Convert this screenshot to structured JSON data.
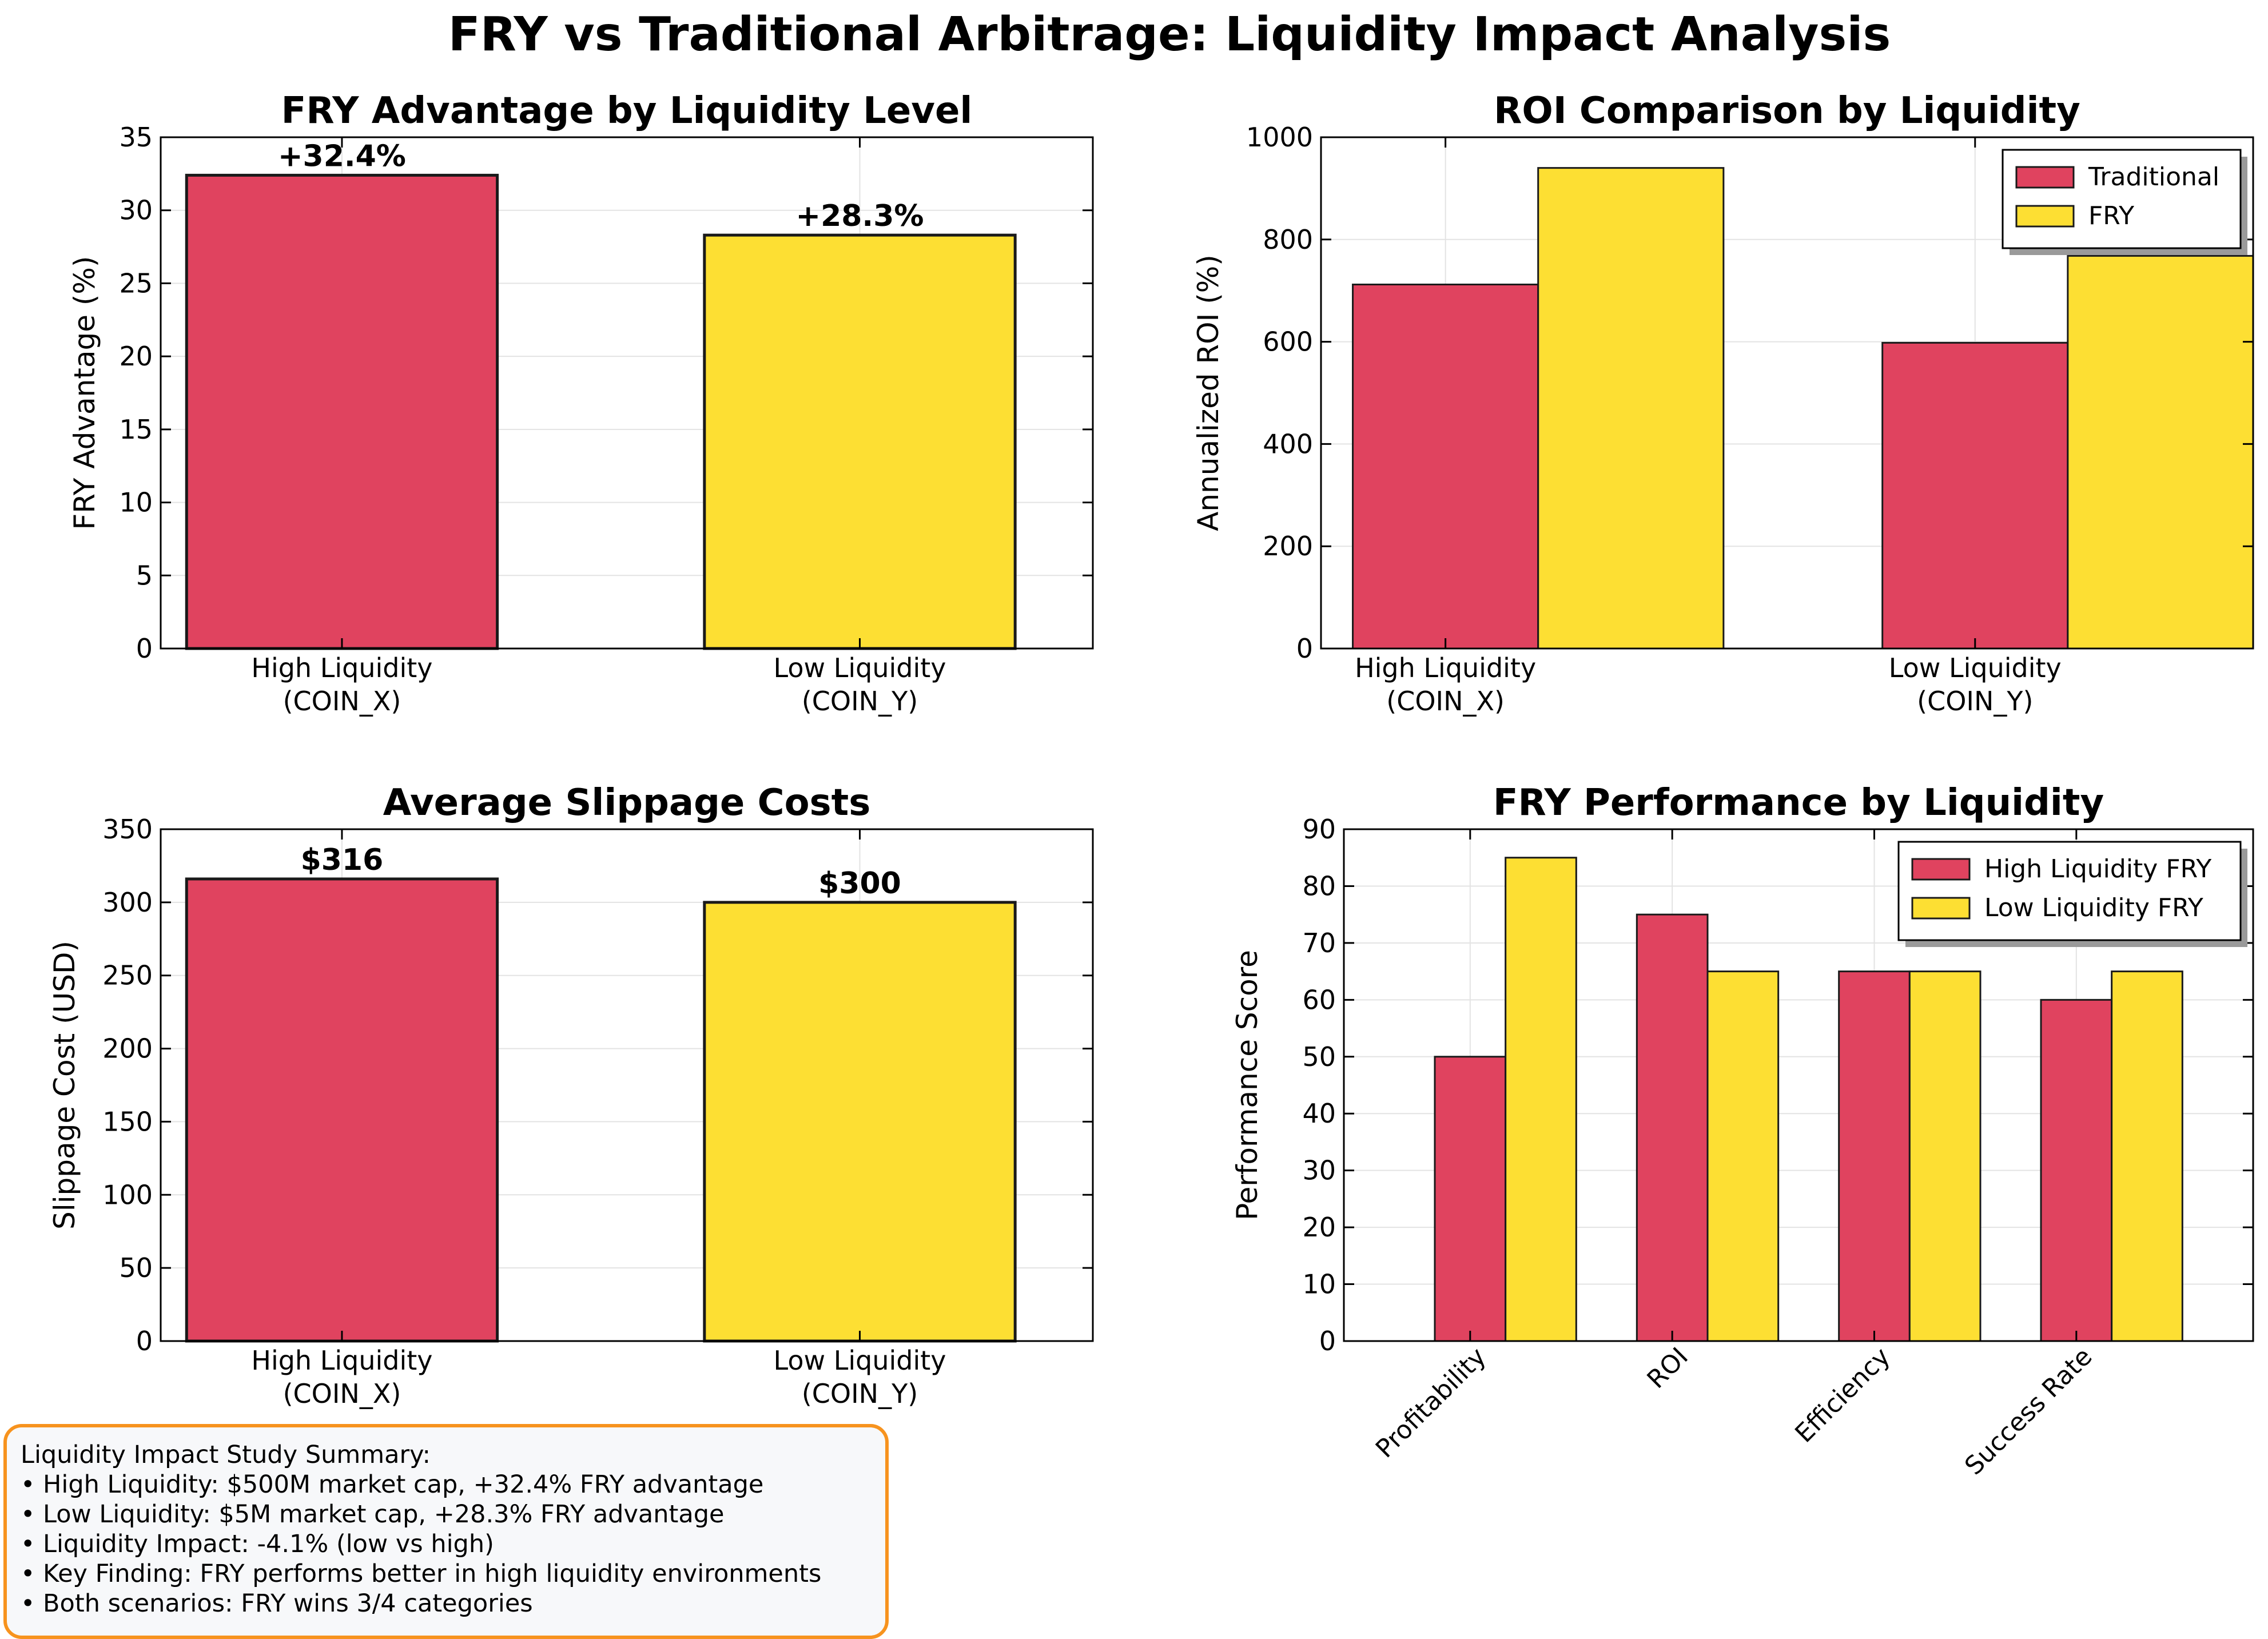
{
  "figure": {
    "title": "FRY vs Traditional Arbitrage: Liquidity Impact Analysis"
  },
  "colors": {
    "red": "#e0435f",
    "yellow": "#fddf33",
    "summary_border": "#f7931e",
    "summary_bg": "#f7f8fa"
  },
  "summary": {
    "lines": [
      "Liquidity Impact Study Summary:",
      "• High Liquidity: $500M market cap, +32.4% FRY advantage",
      "• Low Liquidity: $5M market cap, +28.3% FRY advantage",
      "• Liquidity Impact: -4.1% (low vs high)",
      "• Key Finding: FRY performs better in high liquidity environments",
      "• Both scenarios: FRY wins 3/4 categories"
    ]
  },
  "chart_data": [
    {
      "type": "bar",
      "title": "FRY Advantage by Liquidity Level",
      "xlabel": "",
      "ylabel": "FRY Advantage (%)",
      "categories": [
        "High Liquidity\n(COIN_X)",
        "Low Liquidity\n(COIN_Y)"
      ],
      "values": [
        32.4,
        28.3
      ],
      "bar_colors": [
        "red",
        "yellow"
      ],
      "data_labels": [
        "+32.4%",
        "+28.3%"
      ],
      "ylim": [
        0,
        35
      ],
      "yticks": [
        0,
        5,
        10,
        15,
        20,
        25,
        30,
        35
      ],
      "grid": true
    },
    {
      "type": "bar",
      "title": "ROI Comparison by Liquidity",
      "xlabel": "",
      "ylabel": "Annualized ROI (%)",
      "categories": [
        "High Liquidity\n(COIN_X)",
        "Low Liquidity\n(COIN_Y)"
      ],
      "series": [
        {
          "name": "Traditional",
          "values": [
            712,
            598
          ],
          "color": "red"
        },
        {
          "name": "FRY",
          "values": [
            940,
            768
          ],
          "color": "yellow"
        }
      ],
      "ylim": [
        0,
        1000
      ],
      "yticks": [
        0,
        200,
        400,
        600,
        800,
        1000
      ],
      "legend": "top-right",
      "grid": true
    },
    {
      "type": "bar",
      "title": "Average Slippage Costs",
      "xlabel": "",
      "ylabel": "Slippage Cost (USD)",
      "categories": [
        "High Liquidity\n(COIN_X)",
        "Low Liquidity\n(COIN_Y)"
      ],
      "values": [
        316,
        300
      ],
      "bar_colors": [
        "red",
        "yellow"
      ],
      "data_labels": [
        "$316",
        "$300"
      ],
      "ylim": [
        0,
        350
      ],
      "yticks": [
        0,
        50,
        100,
        150,
        200,
        250,
        300,
        350
      ],
      "grid": true
    },
    {
      "type": "bar",
      "title": "FRY Performance by Liquidity",
      "xlabel": "",
      "ylabel": "Performance Score",
      "categories": [
        "Profitability",
        "ROI",
        "Efficiency",
        "Success Rate"
      ],
      "series": [
        {
          "name": "High Liquidity FRY",
          "values": [
            50,
            75,
            65,
            60
          ],
          "color": "red"
        },
        {
          "name": "Low Liquidity FRY",
          "values": [
            85,
            65,
            65,
            65
          ],
          "color": "yellow"
        }
      ],
      "ylim": [
        0,
        90
      ],
      "yticks": [
        0,
        10,
        20,
        30,
        40,
        50,
        60,
        70,
        80,
        90
      ],
      "legend": "top-right",
      "rotated_xticks": true,
      "grid": true
    }
  ]
}
